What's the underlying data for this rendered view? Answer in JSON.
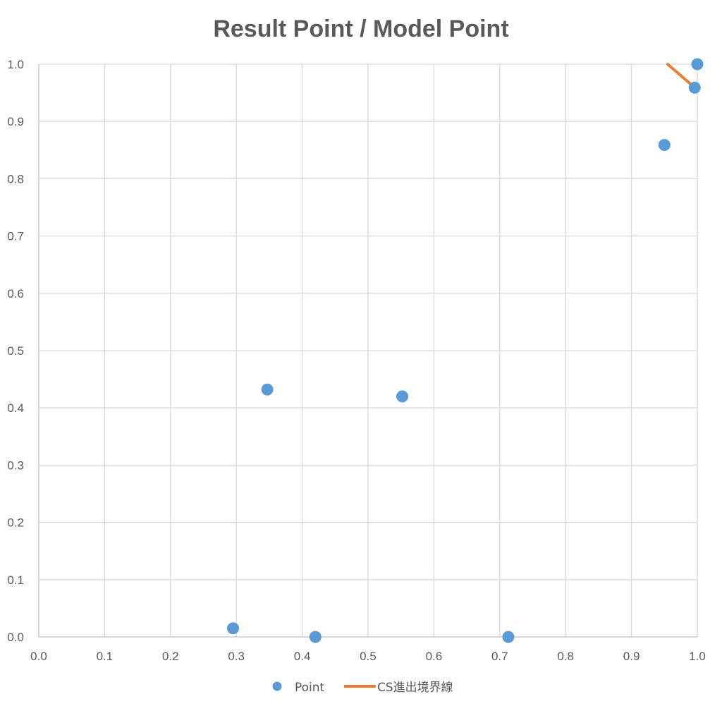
{
  "chart_data": {
    "type": "scatter",
    "title": "Result Point / Model Point",
    "xlabel": "",
    "ylabel": "",
    "xlim": [
      0,
      1
    ],
    "ylim": [
      0,
      1
    ],
    "x_ticks": [
      "0.0",
      "0.1",
      "0.2",
      "0.3",
      "0.4",
      "0.5",
      "0.6",
      "0.7",
      "0.8",
      "0.9",
      "1.0"
    ],
    "y_ticks": [
      "0.0",
      "0.1",
      "0.2",
      "0.3",
      "0.4",
      "0.5",
      "0.6",
      "0.7",
      "0.8",
      "0.9",
      "1.0"
    ],
    "grid": true,
    "legend_position": "bottom",
    "series": [
      {
        "name": "Point",
        "kind": "scatter",
        "color": "#5b9bd5",
        "points": [
          {
            "x": 0.295,
            "y": 0.015
          },
          {
            "x": 0.347,
            "y": 0.432
          },
          {
            "x": 0.42,
            "y": 0.0
          },
          {
            "x": 0.552,
            "y": 0.42
          },
          {
            "x": 0.713,
            "y": 0.0
          },
          {
            "x": 0.95,
            "y": 0.859
          },
          {
            "x": 0.996,
            "y": 0.959
          },
          {
            "x": 1.0,
            "y": 1.0
          }
        ]
      },
      {
        "name": "CS進出境界線",
        "kind": "line",
        "color": "#ed7d31",
        "points": [
          {
            "x": 0.955,
            "y": 1.0
          },
          {
            "x": 0.996,
            "y": 0.959
          }
        ]
      }
    ]
  }
}
